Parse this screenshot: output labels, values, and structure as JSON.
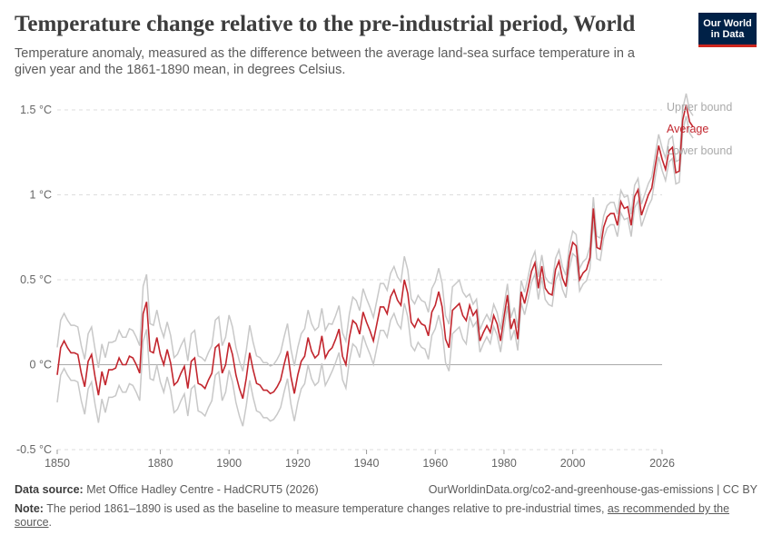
{
  "header": {
    "title": "Temperature change relative to the pre-industrial period, World",
    "subtitle": "Temperature anomaly, measured as the difference between the average land-sea surface temperature in a given year and the 1861-1890 mean, in degrees Celsius.",
    "logo_line1": "Our World",
    "logo_line2": "in Data"
  },
  "footer": {
    "source_label": "Data source:",
    "source_text": "Met Office Hadley Centre - HadCRUT5 (2026)",
    "url_text": "OurWorldinData.org/co2-and-greenhouse-gas-emissions | CC BY",
    "note_label": "Note:",
    "note_text": "The period 1861–1890 is used as the baseline to measure temperature changes relative to pre-industrial times, ",
    "note_link": "as recommended by the source",
    "note_end": "."
  },
  "colors": {
    "average": "#c2262e",
    "bounds": "#c8c8c8",
    "grid": "#dddddd",
    "zero_line": "#aaaaaa",
    "logo_bg": "#002147",
    "logo_accent": "#ce261e"
  },
  "chart_data": {
    "type": "line",
    "title": "Temperature change relative to the pre-industrial period, World",
    "xlabel": "",
    "ylabel": "",
    "xlim": [
      1850,
      2026
    ],
    "ylim": [
      -0.5,
      1.6
    ],
    "x_ticks": [
      1850,
      1880,
      1900,
      1920,
      1940,
      1960,
      1980,
      2000,
      2026
    ],
    "x_tick_labels": [
      "1850",
      "1880",
      "1900",
      "1920",
      "1940",
      "1960",
      "1980",
      "2000",
      "2026"
    ],
    "y_ticks": [
      -0.5,
      0,
      0.5,
      1,
      1.5
    ],
    "y_tick_labels": [
      "-0.5 °C",
      "0 °C",
      "0.5 °C",
      "1 °C",
      "1.5 °C"
    ],
    "grid": true,
    "legend_placement": "right, inline at series ends",
    "series_labels": {
      "upper": "Upper bound",
      "average": "Average",
      "lower": "Lower bound"
    },
    "x_start": 1850,
    "average": [
      -0.06,
      0.1,
      0.14,
      0.1,
      0.07,
      0.07,
      0.06,
      -0.05,
      -0.13,
      0.02,
      0.06,
      -0.07,
      -0.18,
      -0.04,
      -0.12,
      -0.03,
      -0.03,
      -0.02,
      0.04,
      0.0,
      0.0,
      0.05,
      0.04,
      0.0,
      -0.05,
      0.3,
      0.37,
      0.08,
      0.07,
      0.16,
      0.06,
      0.0,
      0.09,
      0.01,
      -0.12,
      -0.1,
      -0.05,
      -0.01,
      -0.14,
      0.02,
      0.04,
      -0.11,
      -0.12,
      -0.14,
      -0.09,
      -0.05,
      0.1,
      0.12,
      -0.05,
      0.0,
      0.13,
      0.06,
      -0.06,
      -0.14,
      -0.2,
      -0.08,
      0.07,
      -0.03,
      -0.11,
      -0.12,
      -0.15,
      -0.15,
      -0.17,
      -0.16,
      -0.13,
      -0.09,
      0.0,
      0.08,
      -0.07,
      -0.17,
      -0.06,
      0.02,
      0.05,
      0.16,
      0.08,
      0.04,
      0.06,
      0.17,
      0.04,
      0.08,
      0.1,
      0.15,
      0.21,
      0.05,
      0.0,
      0.16,
      0.26,
      0.24,
      0.18,
      0.31,
      0.25,
      0.2,
      0.14,
      0.24,
      0.34,
      0.34,
      0.3,
      0.4,
      0.44,
      0.38,
      0.35,
      0.5,
      0.42,
      0.25,
      0.22,
      0.27,
      0.24,
      0.23,
      0.17,
      0.31,
      0.35,
      0.43,
      0.34,
      0.15,
      0.1,
      0.32,
      0.34,
      0.36,
      0.29,
      0.26,
      0.35,
      0.29,
      0.32,
      0.14,
      0.19,
      0.23,
      0.19,
      0.29,
      0.24,
      0.14,
      0.28,
      0.41,
      0.21,
      0.27,
      0.15,
      0.43,
      0.36,
      0.45,
      0.55,
      0.6,
      0.45,
      0.58,
      0.45,
      0.42,
      0.41,
      0.56,
      0.61,
      0.51,
      0.46,
      0.63,
      0.72,
      0.7,
      0.5,
      0.54,
      0.56,
      0.63,
      0.92,
      0.69,
      0.68,
      0.81,
      0.87,
      0.89,
      0.89,
      0.82,
      0.96,
      0.92,
      0.93,
      0.82,
      0.99,
      1.03,
      0.88,
      0.94,
      1.0,
      1.04,
      1.17,
      1.29,
      1.21,
      1.15,
      1.26,
      1.28,
      1.13,
      1.14,
      1.44,
      1.53,
      1.43,
      1.4
    ],
    "spread": 0.12
  }
}
